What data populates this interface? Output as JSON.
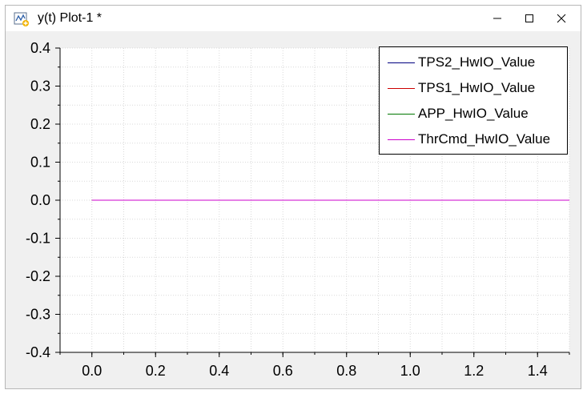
{
  "window": {
    "title": "y(t) Plot-1 *",
    "icon": "plot-app-icon",
    "buttons": {
      "minimize": "minimize-icon",
      "maximize": "maximize-icon",
      "close": "close-icon"
    }
  },
  "chart_data": {
    "type": "line",
    "title": "",
    "xlabel": "",
    "ylabel": "",
    "xlim": [
      -0.1,
      1.5
    ],
    "ylim": [
      -0.4,
      0.4
    ],
    "xticks": [
      0.0,
      0.2,
      0.4,
      0.6,
      0.8,
      1.0,
      1.2,
      1.4
    ],
    "xtick_labels": [
      "0.0",
      "0.2",
      "0.4",
      "0.6",
      "0.8",
      "1.0",
      "1.2",
      "1.4"
    ],
    "yticks": [
      0.4,
      0.3,
      0.2,
      0.1,
      0.0,
      -0.1,
      -0.2,
      -0.3,
      -0.4
    ],
    "ytick_labels": [
      "0.4",
      "0.3",
      "0.2",
      "0.1",
      "0.0",
      "-0.1",
      "-0.2",
      "-0.3",
      "-0.4"
    ],
    "grid": true,
    "legend_position": "top-right",
    "series": [
      {
        "name": "TPS2_HwIO_Value",
        "color": "#000080",
        "x": [
          0.0,
          1.5
        ],
        "y": [
          0.0,
          0.0
        ]
      },
      {
        "name": "TPS1_HwIO_Value",
        "color": "#cc0000",
        "x": [
          0.0,
          1.5
        ],
        "y": [
          0.0,
          0.0
        ]
      },
      {
        "name": "APP_HwIO_Value",
        "color": "#007700",
        "x": [
          0.0,
          1.5
        ],
        "y": [
          0.0,
          0.0
        ]
      },
      {
        "name": "ThrCmd_HwIO_Value",
        "color": "#cc00cc",
        "x": [
          0.0,
          1.5
        ],
        "y": [
          0.0,
          0.0
        ]
      }
    ]
  }
}
